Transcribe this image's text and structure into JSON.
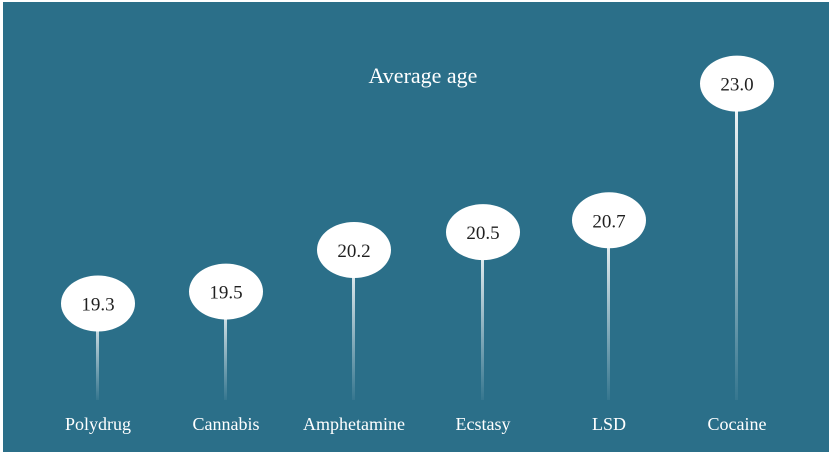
{
  "chart_data": {
    "type": "lollipop",
    "title": "Average age",
    "categories": [
      "Polydrug",
      "Cannabis",
      "Amphetamine",
      "Ecstasy",
      "LSD",
      "Cocaine"
    ],
    "values": [
      19.3,
      19.5,
      20.2,
      20.5,
      20.7,
      23.0
    ],
    "value_labels": [
      "19.3",
      "19.5",
      "20.2",
      "20.5",
      "20.7",
      "23.0"
    ],
    "ylim": [
      16.8,
      23.7
    ],
    "grid": false,
    "legend": "none",
    "colors": {
      "background": "#2b6f89",
      "marker": "#ffffff",
      "text": "#ffffff",
      "value_text": "#1f1f1f"
    }
  }
}
